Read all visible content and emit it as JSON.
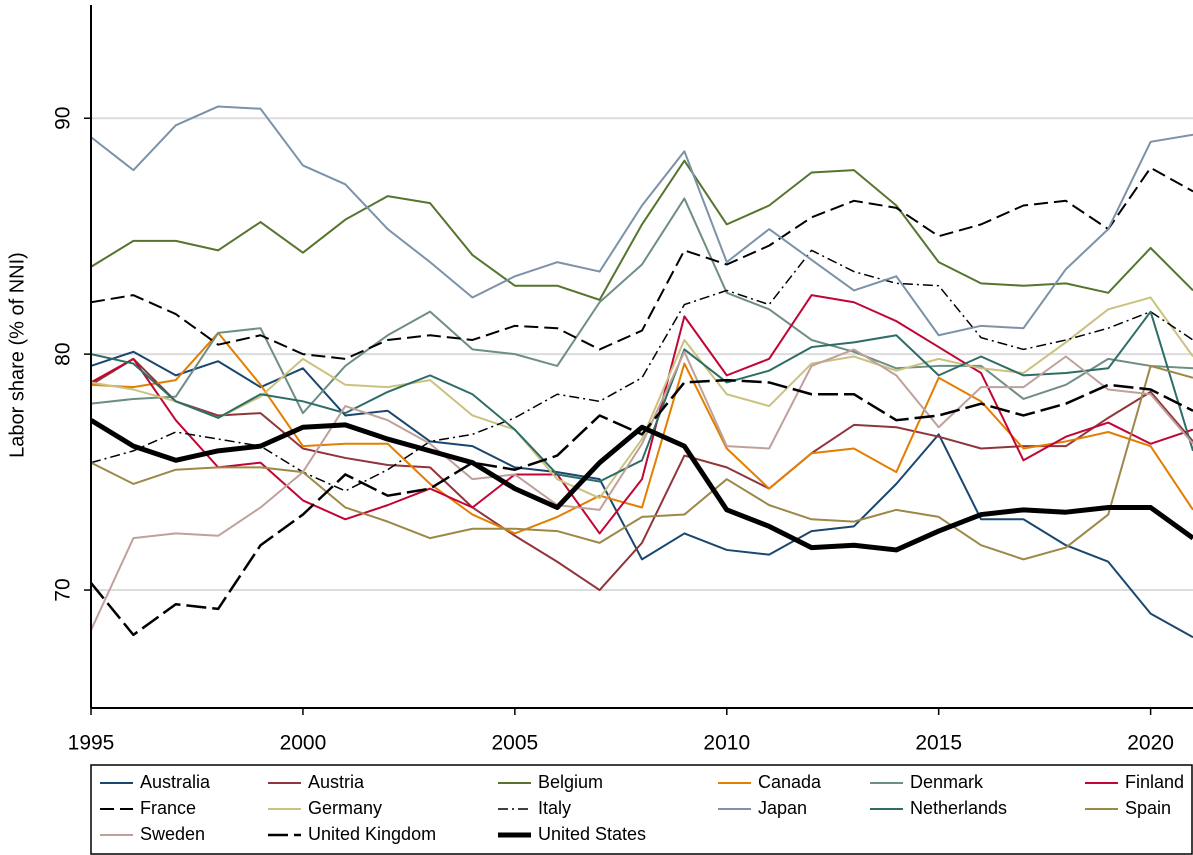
{
  "chart_data": {
    "type": "line",
    "y_label": "Labor share (% of NNI)",
    "x": [
      1995,
      1996,
      1997,
      1998,
      1999,
      2000,
      2001,
      2002,
      2003,
      2004,
      2005,
      2006,
      2007,
      2008,
      2009,
      2010,
      2011,
      2012,
      2013,
      2014,
      2015,
      2016,
      2017,
      2018,
      2019,
      2020,
      2021
    ],
    "xlim": [
      1995,
      2021
    ],
    "xticks": [
      1995,
      2000,
      2005,
      2010,
      2015,
      2020
    ],
    "ylim": [
      65,
      94.8
    ],
    "yticks": [
      70,
      80,
      90
    ],
    "grid": true,
    "legend": "bottom",
    "series": [
      {
        "name": "Australia",
        "color": "#1a476f",
        "dash": "solid",
        "width": 2,
        "values": [
          79.5,
          80.1,
          79.1,
          79.7,
          78.6,
          79.4,
          77.4,
          77.6,
          76.3,
          76.1,
          75.2,
          75.0,
          74.7,
          71.3,
          72.4,
          71.7,
          71.5,
          72.5,
          72.7,
          74.5,
          76.6,
          73.0,
          73.0,
          71.9,
          71.2,
          69.0,
          68.0
        ]
      },
      {
        "name": "Austria",
        "color": "#90353b",
        "dash": "solid",
        "width": 2,
        "values": [
          78.7,
          79.8,
          78.0,
          77.4,
          77.5,
          76.0,
          75.6,
          75.3,
          75.2,
          73.5,
          72.3,
          71.2,
          70.0,
          72.0,
          75.7,
          75.2,
          74.3,
          75.8,
          77.0,
          76.9,
          76.5,
          76.0,
          76.1,
          76.1,
          77.3,
          78.4,
          76.3
        ]
      },
      {
        "name": "Belgium",
        "color": "#55752f",
        "dash": "solid",
        "width": 2,
        "values": [
          83.7,
          84.8,
          84.8,
          84.4,
          85.6,
          84.3,
          85.7,
          86.7,
          86.4,
          84.2,
          82.9,
          82.9,
          82.3,
          85.5,
          88.2,
          85.5,
          86.3,
          87.7,
          87.8,
          86.3,
          83.9,
          83.0,
          82.9,
          83.0,
          82.6,
          84.5,
          82.7
        ]
      },
      {
        "name": "Canada",
        "color": "#e37e00",
        "dash": "solid",
        "width": 2,
        "values": [
          78.7,
          78.6,
          78.9,
          80.9,
          78.7,
          76.1,
          76.2,
          76.2,
          74.5,
          73.2,
          72.4,
          73.1,
          74.0,
          73.5,
          79.6,
          76.0,
          74.3,
          75.8,
          76.0,
          75.0,
          79.0,
          78.0,
          76.0,
          76.3,
          76.7,
          76.1,
          73.4
        ]
      },
      {
        "name": "Denmark",
        "color": "#6e8e84",
        "dash": "solid",
        "width": 2,
        "values": [
          77.9,
          78.1,
          78.2,
          80.9,
          81.1,
          77.5,
          79.5,
          80.8,
          81.8,
          80.2,
          80.0,
          79.5,
          82.2,
          83.8,
          86.6,
          82.6,
          81.9,
          80.6,
          80.1,
          79.4,
          79.5,
          79.5,
          78.1,
          78.7,
          79.8,
          79.5,
          79.4
        ]
      },
      {
        "name": "Finland",
        "color": "#c10534",
        "dash": "solid",
        "width": 2,
        "values": [
          78.8,
          79.8,
          77.2,
          75.2,
          75.4,
          73.8,
          73.0,
          73.6,
          74.3,
          73.5,
          74.9,
          74.9,
          72.4,
          74.7,
          81.6,
          79.1,
          79.8,
          82.5,
          82.2,
          81.4,
          80.3,
          79.2,
          75.5,
          76.5,
          77.1,
          76.2,
          76.8
        ]
      },
      {
        "name": "France",
        "color": "#000000",
        "dash": "dash",
        "width": 2,
        "values": [
          82.2,
          82.5,
          81.7,
          80.4,
          80.8,
          80.0,
          79.8,
          80.6,
          80.8,
          80.6,
          81.2,
          81.1,
          80.2,
          81.0,
          84.4,
          83.8,
          84.6,
          85.8,
          86.5,
          86.2,
          85.0,
          85.5,
          86.3,
          86.5,
          85.3,
          87.9,
          86.9
        ]
      },
      {
        "name": "Germany",
        "color": "#cac27e",
        "dash": "solid",
        "width": 2,
        "values": [
          78.8,
          78.5,
          78.0,
          77.3,
          78.2,
          79.8,
          78.7,
          78.6,
          78.9,
          77.4,
          76.8,
          74.7,
          73.9,
          76.4,
          80.6,
          78.3,
          77.8,
          79.6,
          79.9,
          79.3,
          79.8,
          79.4,
          79.2,
          80.5,
          81.9,
          82.4,
          79.9
        ]
      },
      {
        "name": "Italy",
        "color": "#000000",
        "dash": "dashdot",
        "width": 1.5,
        "values": [
          75.4,
          75.9,
          76.7,
          76.4,
          76.1,
          75.0,
          74.2,
          75.1,
          76.3,
          76.6,
          77.3,
          78.3,
          78.0,
          79.0,
          82.1,
          82.7,
          82.1,
          84.4,
          83.5,
          83.0,
          82.9,
          80.7,
          80.2,
          80.6,
          81.1,
          81.8,
          80.6
        ]
      },
      {
        "name": "Japan",
        "color": "#7b92a8",
        "dash": "solid",
        "width": 2,
        "values": [
          89.2,
          87.8,
          89.7,
          90.5,
          90.4,
          88.0,
          87.2,
          85.3,
          83.9,
          82.4,
          83.3,
          83.9,
          83.5,
          86.3,
          88.6,
          83.9,
          85.3,
          84.0,
          82.7,
          83.3,
          80.8,
          81.2,
          81.1,
          83.6,
          85.3,
          89.0,
          89.3
        ]
      },
      {
        "name": "Netherlands",
        "color": "#2d6d66",
        "dash": "solid",
        "width": 2,
        "values": [
          80.0,
          79.6,
          78.0,
          77.3,
          78.3,
          78.0,
          77.5,
          78.4,
          79.1,
          78.3,
          76.8,
          74.9,
          74.6,
          75.5,
          80.2,
          78.8,
          79.3,
          80.3,
          80.5,
          80.8,
          79.1,
          79.9,
          79.1,
          79.2,
          79.4,
          81.8,
          75.9
        ]
      },
      {
        "name": "Spain",
        "color": "#9c8847",
        "dash": "solid",
        "width": 2,
        "values": [
          75.4,
          74.5,
          75.1,
          75.2,
          75.2,
          75.0,
          73.5,
          72.9,
          72.2,
          72.6,
          72.6,
          72.5,
          72.0,
          73.1,
          73.2,
          74.7,
          73.6,
          73.0,
          72.9,
          73.4,
          73.1,
          71.9,
          71.3,
          71.8,
          73.2,
          79.5,
          79.0
        ]
      },
      {
        "name": "Sweden",
        "color": "#bfa19c",
        "dash": "solid",
        "width": 2,
        "values": [
          68.3,
          72.2,
          72.4,
          72.3,
          73.5,
          75.0,
          77.8,
          77.2,
          76.2,
          74.7,
          74.9,
          73.6,
          73.4,
          76.2,
          80.1,
          76.1,
          76.0,
          79.5,
          80.2,
          79.1,
          76.9,
          78.6,
          78.6,
          79.9,
          78.5,
          78.3,
          76.2
        ]
      },
      {
        "name": "United Kingdom",
        "color": "#000000",
        "dash": "longdash",
        "width": 2.5,
        "values": [
          70.3,
          68.1,
          69.4,
          69.2,
          71.9,
          73.2,
          74.9,
          74.0,
          74.3,
          75.4,
          75.1,
          75.7,
          77.4,
          76.6,
          78.8,
          78.9,
          78.8,
          78.3,
          78.3,
          77.2,
          77.4,
          77.9,
          77.4,
          77.9,
          78.7,
          78.5,
          77.6
        ]
      },
      {
        "name": "United States",
        "color": "#000000",
        "dash": "solid",
        "width": 5,
        "values": [
          77.2,
          76.1,
          75.5,
          75.9,
          76.1,
          76.9,
          77.0,
          76.4,
          75.9,
          75.4,
          74.3,
          73.5,
          75.4,
          76.9,
          76.1,
          73.4,
          72.7,
          71.8,
          71.9,
          71.7,
          72.5,
          73.2,
          73.4,
          73.3,
          73.5,
          73.5,
          72.2
        ]
      }
    ]
  }
}
